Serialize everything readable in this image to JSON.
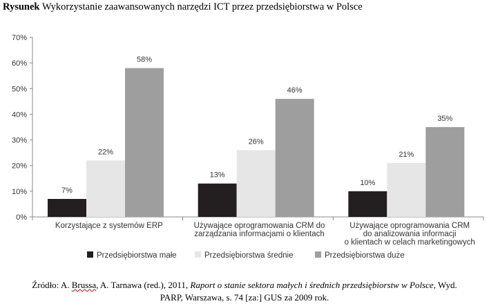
{
  "title": {
    "bold": "Rysunek",
    "rest": " Wykorzystanie zaawansowanych narzędzi ICT przez przedsiębiorstwa w Polsce"
  },
  "source": {
    "prefix": "Źródło: A. ",
    "author1": "Brussa",
    "authors_rest": ", A. Tarnawa (red.), 2011, ",
    "italic": "Raport o stanie sektora małych i średnich przedsiębiorstw w Polsce",
    "after_italic": ", Wyd.",
    "line2": "PARP, Warszawa, s. 74 [za:] GUS za 2009 rok."
  },
  "colors": {
    "small": "#231f20",
    "medium": "#e6e6e6",
    "large": "#9e9e9e",
    "grid": "#888888"
  },
  "chart_data": {
    "type": "bar",
    "categories": [
      [
        "Korzystające z systemów ERP"
      ],
      [
        "Używające oprogramowania CRM do",
        "zarządzania informacjami o klientach"
      ],
      [
        "Używające oprogramowania CRM",
        "do analizowania informacji",
        "o klientach w celach marketingowych"
      ]
    ],
    "series": [
      {
        "name": "Przedsiębiorstwa małe",
        "values": [
          7,
          13,
          10
        ],
        "labels": [
          "7%",
          "13%",
          "10%"
        ]
      },
      {
        "name": "Przedsiębiorstwa średnie",
        "values": [
          22,
          26,
          21
        ],
        "labels": [
          "22%",
          "26%",
          "21%"
        ]
      },
      {
        "name": "Przedsiębiorstwa duże",
        "values": [
          58,
          46,
          35
        ],
        "labels": [
          "58%",
          "46%",
          "35%"
        ]
      }
    ],
    "ylim": [
      0,
      70
    ],
    "yticks": [
      "0%",
      "10%",
      "20%",
      "30%",
      "40%",
      "50%",
      "60%",
      "70%"
    ],
    "grid": false,
    "legend": "bottom"
  }
}
